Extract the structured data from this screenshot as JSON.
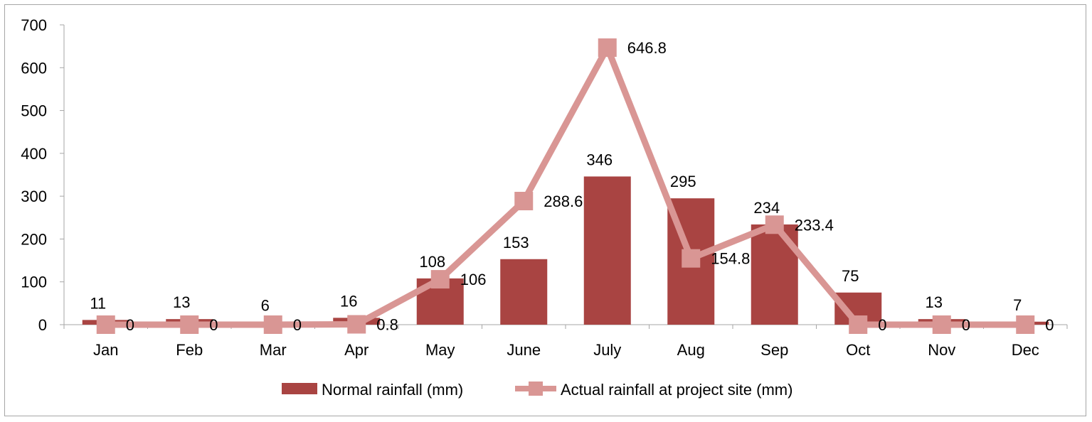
{
  "chart_data": {
    "type": "bar",
    "title": "",
    "xlabel": "",
    "ylabel": "",
    "ylim": [
      0,
      700
    ],
    "yticks": [
      0,
      100,
      200,
      300,
      400,
      500,
      600,
      700
    ],
    "categories": [
      "Jan",
      "Feb",
      "Mar",
      "Apr",
      "May",
      "June",
      "July",
      "Aug",
      "Sep",
      "Oct",
      "Nov",
      "Dec"
    ],
    "series": [
      {
        "name": "Normal rainfall (mm)",
        "kind": "bar",
        "color": "#a94442",
        "values": [
          11,
          13,
          6,
          16,
          108,
          153,
          346,
          295,
          234,
          75,
          13,
          7
        ],
        "labels": [
          "11",
          "13",
          "6",
          "16",
          "108",
          "153",
          "346",
          "295",
          "234",
          "75",
          "13",
          "7"
        ]
      },
      {
        "name": "Actual rainfall at project site (mm)",
        "kind": "line",
        "color": "#d99694",
        "values": [
          0,
          0,
          0,
          0.8,
          106,
          288.6,
          646.8,
          154.8,
          233.4,
          0,
          0,
          0
        ],
        "labels": [
          "0",
          "0",
          "0",
          "0.8",
          "106",
          "288.6",
          "646.8",
          "154.8",
          "233.4",
          "0",
          "0",
          "0"
        ]
      }
    ],
    "legend": "bottom",
    "grid": false
  }
}
